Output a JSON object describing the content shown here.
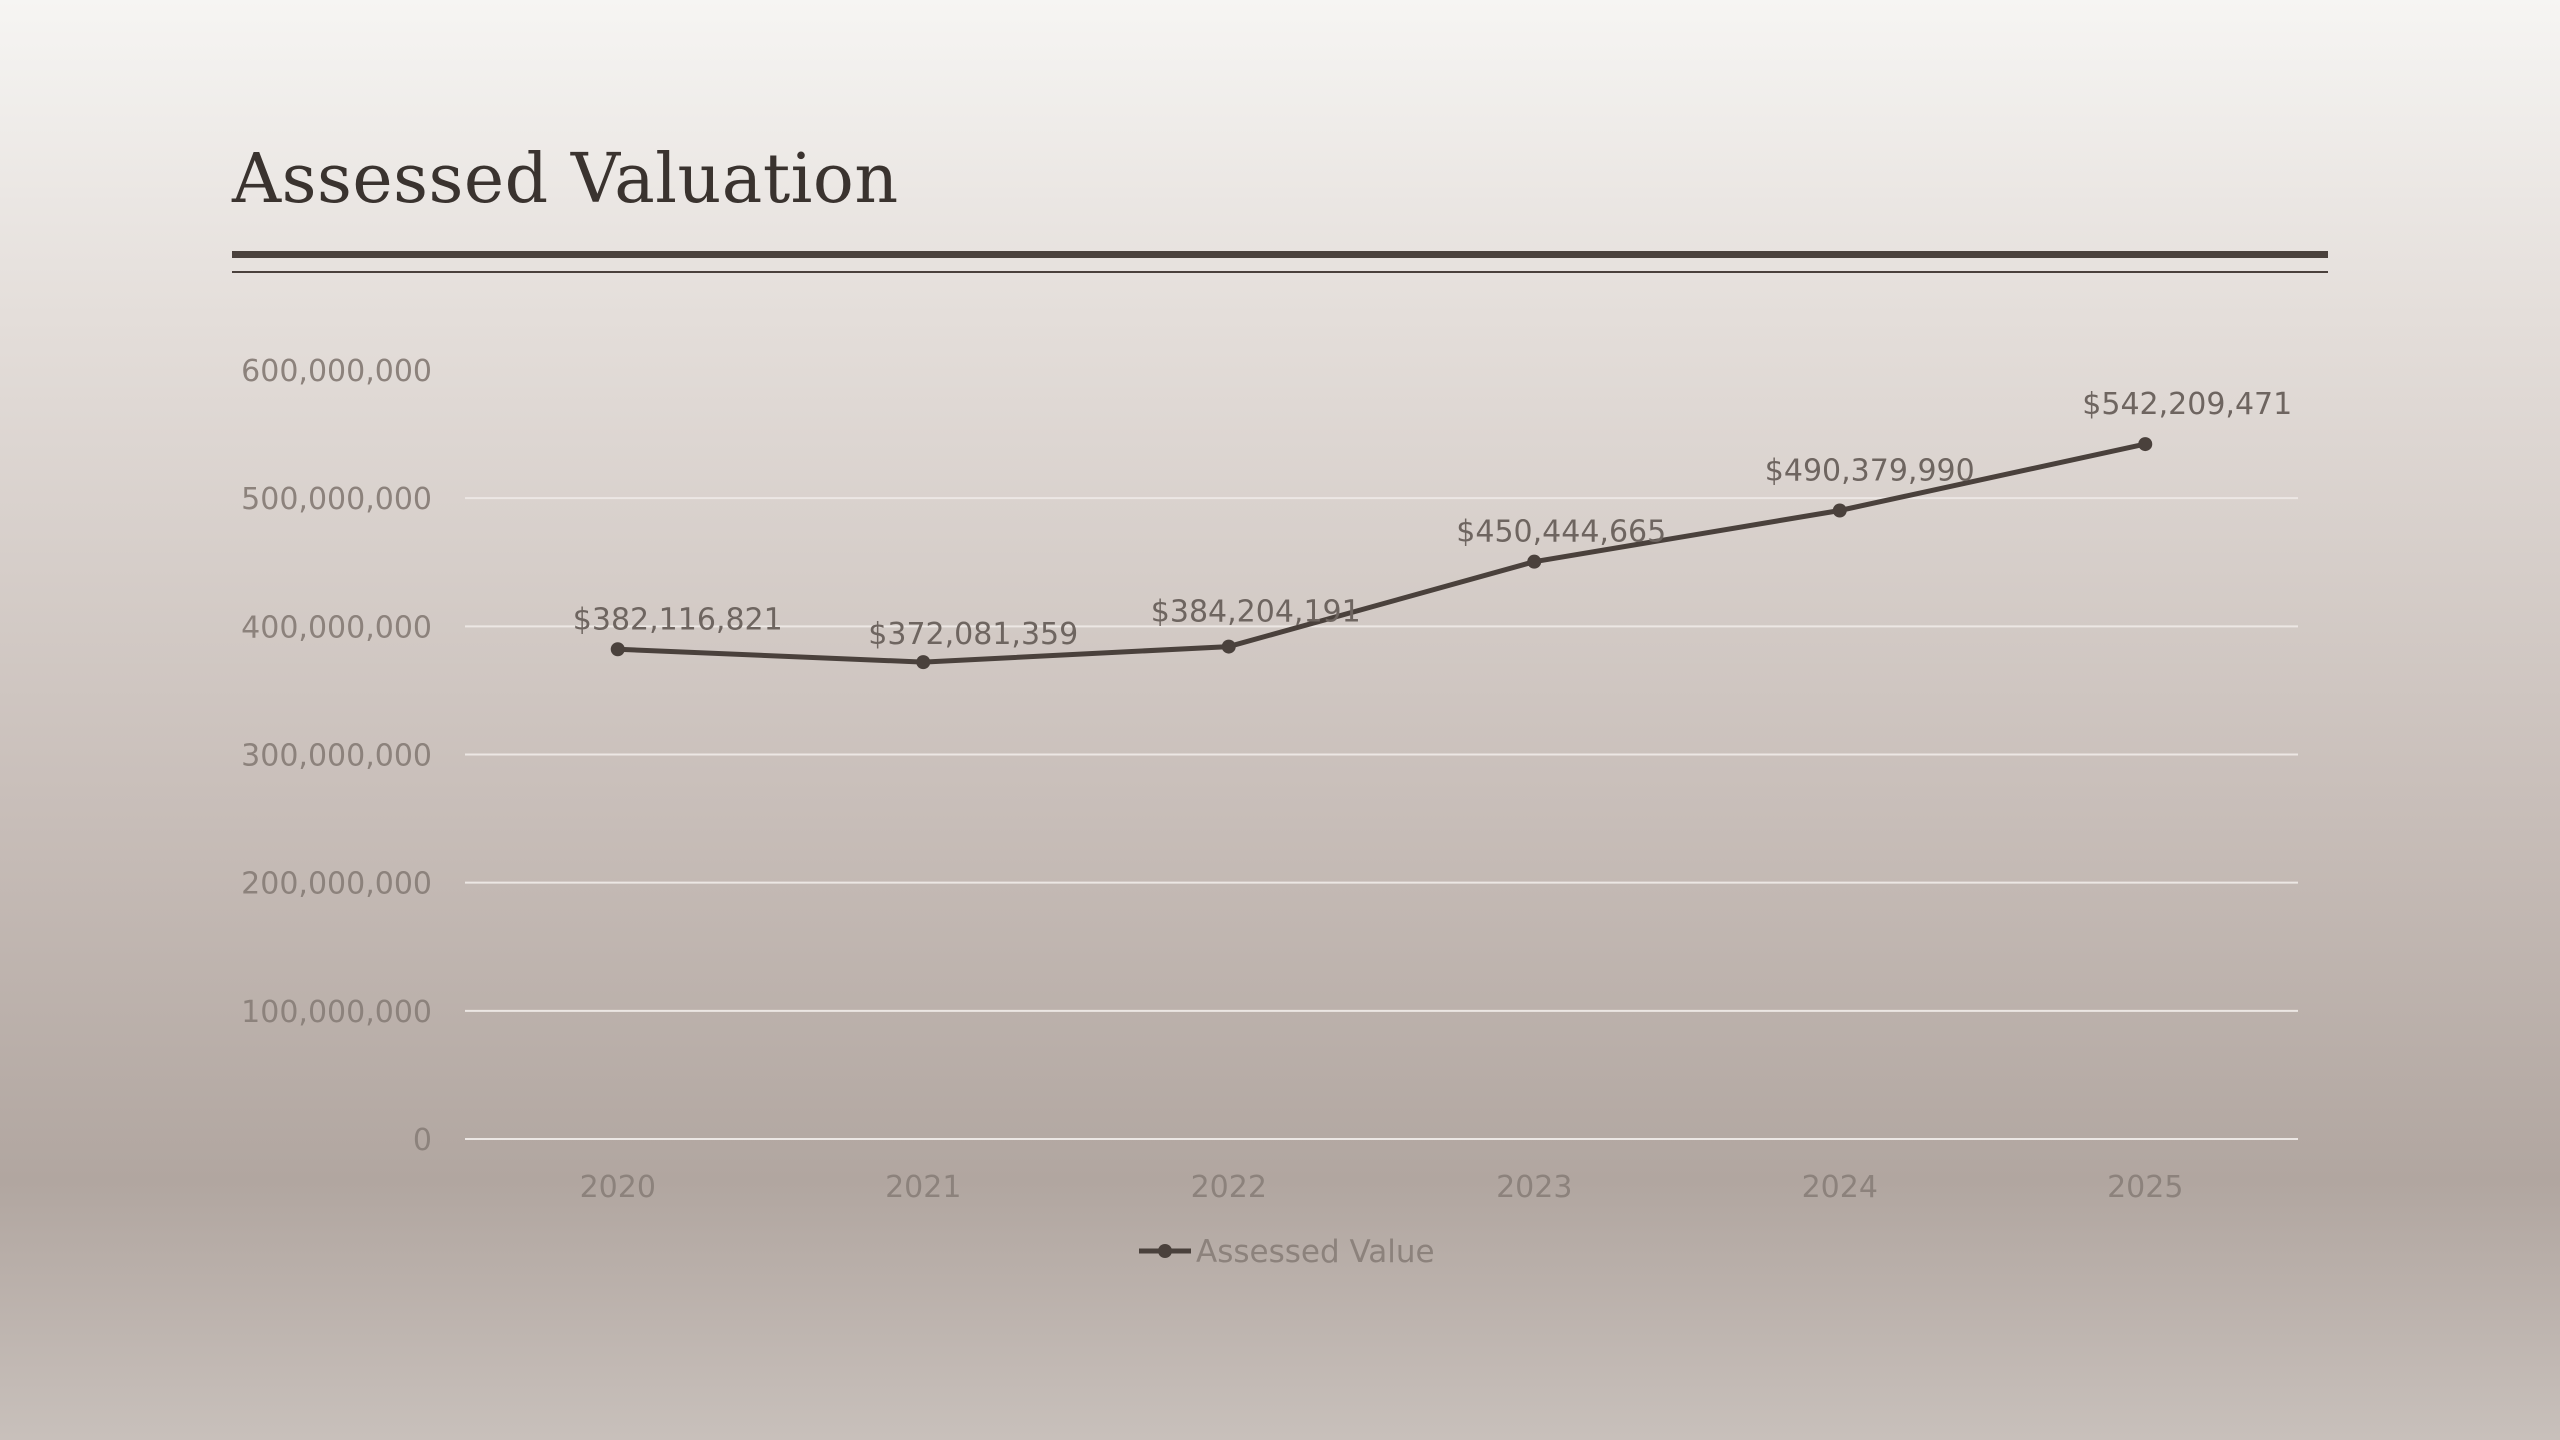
{
  "slide": {
    "title": "Assessed Valuation"
  },
  "chart_data": {
    "type": "line",
    "title": "",
    "xlabel": "",
    "ylabel": "",
    "categories": [
      "2020",
      "2021",
      "2022",
      "2023",
      "2024",
      "2025"
    ],
    "series": [
      {
        "name": "Assessed Value",
        "values": [
          382116821,
          372081359,
          384204191,
          450444665,
          490379990,
          542209471
        ],
        "data_labels": [
          "$382,116,821",
          "$372,081,359",
          "$384,204,191",
          "$450,444,665",
          "$490,379,990",
          "$542,209,471"
        ],
        "color": "#4a413c"
      }
    ],
    "ylim": [
      0,
      600000000
    ],
    "yticks": [
      0,
      100000000,
      200000000,
      300000000,
      400000000,
      500000000,
      600000000
    ],
    "ytick_labels": [
      "0",
      "100,000,000",
      "200,000,000",
      "300,000,000",
      "400,000,000",
      "500,000,000",
      "600,000,000"
    ],
    "grid": true,
    "grid_color": "#ece7e4",
    "legend_position": "bottom"
  }
}
